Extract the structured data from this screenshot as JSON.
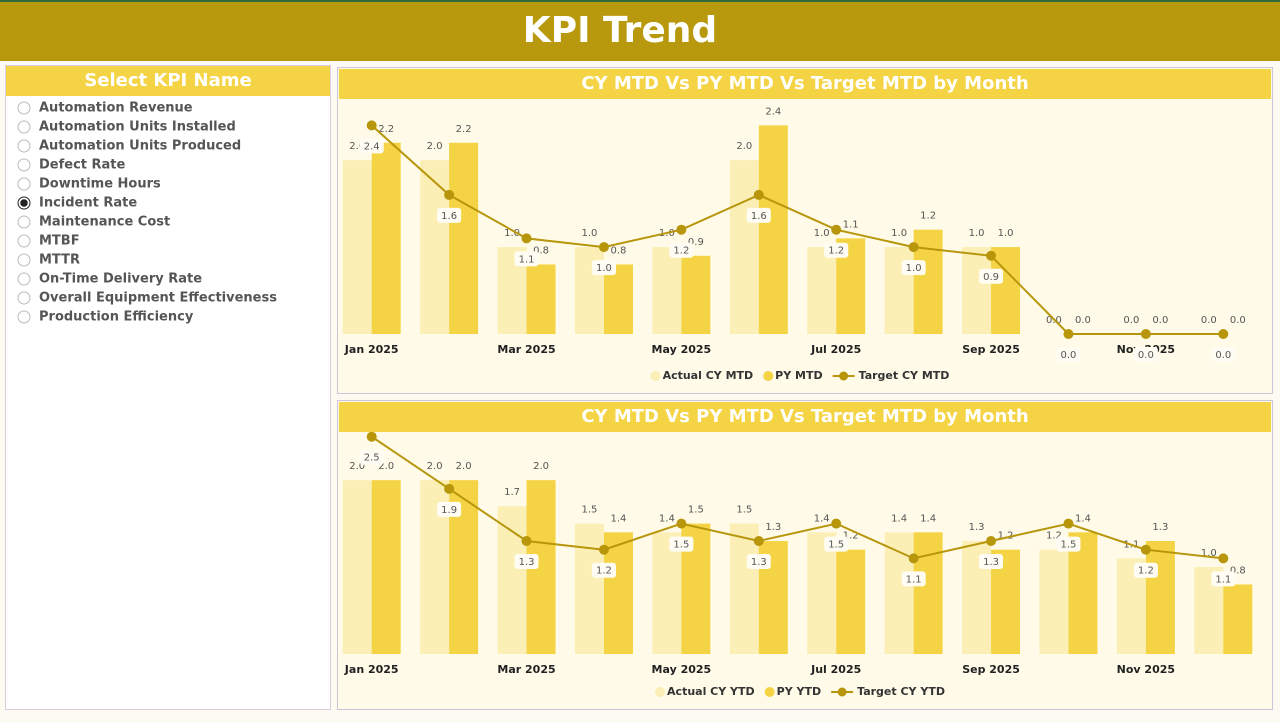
{
  "header": {
    "title": "KPI Trend"
  },
  "slicer": {
    "title": "Select KPI Name",
    "options": [
      "Automation Revenue",
      "Automation Units Installed",
      "Automation Units Produced",
      "Defect Rate",
      "Downtime Hours",
      "Incident Rate",
      "Maintenance Cost",
      "MTBF",
      "MTTR",
      "On-Time Delivery Rate",
      "Overall Equipment Effectiveness",
      "Production Efficiency"
    ],
    "selected": "Incident Rate"
  },
  "chart_data": [
    {
      "type": "combo",
      "title": "CY MTD Vs PY MTD Vs Target MTD by Month",
      "categories": [
        "Jan 2025",
        null,
        "Mar 2025",
        null,
        "May 2025",
        null,
        "Jul 2025",
        null,
        "Sep 2025",
        null,
        "Nov 2025",
        null
      ],
      "ylim": [
        0,
        2.6
      ],
      "legend": "bottom",
      "series": [
        {
          "name": "Actual CY MTD",
          "type": "bar",
          "color": "#fbefb6",
          "values": [
            2.0,
            2.0,
            1.0,
            1.0,
            1.0,
            2.0,
            1.0,
            1.0,
            1.0,
            0.0,
            0.0,
            0.0
          ],
          "value_labels": [
            "2.0",
            "2.0",
            "1.0",
            "1.0",
            "1.0",
            "2.0",
            "1.0",
            "1.0",
            "1.0",
            "0.0",
            "0.0",
            "0.0"
          ]
        },
        {
          "name": "PY MTD",
          "type": "bar",
          "color": "#f4d444",
          "values": [
            2.2,
            2.2,
            0.8,
            0.8,
            0.9,
            2.4,
            1.1,
            1.2,
            1.0,
            0.0,
            0.0,
            0.0
          ],
          "value_labels": [
            "2.2",
            "2.2",
            "0.8",
            "0.8",
            "0.9",
            "2.4",
            "1.1",
            "1.2",
            "1.0",
            "0.0",
            "0.0",
            "0.0"
          ]
        },
        {
          "name": "Target CY MTD",
          "type": "line",
          "color": "#b8960c",
          "values": [
            2.4,
            1.6,
            1.1,
            1.0,
            1.2,
            1.6,
            1.2,
            1.0,
            0.9,
            0.0,
            0.0,
            0.0
          ],
          "value_labels": [
            "2.4",
            "1.6",
            "1.1",
            "1.0",
            "1.2",
            "1.6",
            "1.2",
            "1.0",
            "0.9",
            "0.0",
            "0.0",
            "0.0"
          ]
        }
      ]
    },
    {
      "type": "combo",
      "title": "CY MTD Vs PY MTD Vs Target MTD by Month",
      "categories": [
        "Jan 2025",
        null,
        "Mar 2025",
        null,
        "May 2025",
        null,
        "Jul 2025",
        null,
        "Sep 2025",
        null,
        "Nov 2025",
        null
      ],
      "ylim": [
        0,
        2.6
      ],
      "legend": "bottom",
      "series": [
        {
          "name": "Actual CY YTD",
          "type": "bar",
          "color": "#fbefb6",
          "values": [
            2.0,
            2.0,
            1.7,
            1.5,
            1.4,
            1.5,
            1.4,
            1.4,
            1.3,
            1.2,
            1.1,
            1.0
          ],
          "value_labels": [
            "2.0",
            "2.0",
            "1.7",
            "1.5",
            "1.4",
            "1.5",
            "1.4",
            "1.4",
            "1.3",
            "1.2",
            "1.1",
            "1.0"
          ]
        },
        {
          "name": "PY YTD",
          "type": "bar",
          "color": "#f4d444",
          "values": [
            2.0,
            2.0,
            2.0,
            1.4,
            1.5,
            1.3,
            1.2,
            1.4,
            1.2,
            1.4,
            1.3,
            0.8
          ],
          "value_labels": [
            "2.0",
            "2.0",
            "2.0",
            "1.4",
            "1.5",
            "1.3",
            "1.2",
            "1.4",
            "1.2",
            "1.4",
            "1.3",
            "0.8"
          ]
        },
        {
          "name": "Target CY YTD",
          "type": "line",
          "color": "#b8960c",
          "values": [
            2.5,
            1.9,
            1.3,
            1.2,
            1.5,
            1.3,
            1.5,
            1.1,
            1.3,
            1.5,
            1.2,
            1.1
          ],
          "value_labels": [
            "2.5",
            "1.9",
            "1.3",
            "1.2",
            "1.5",
            "1.3",
            "1.5",
            "1.1",
            "1.3",
            "1.5",
            "1.2",
            "1.1"
          ]
        }
      ]
    }
  ]
}
